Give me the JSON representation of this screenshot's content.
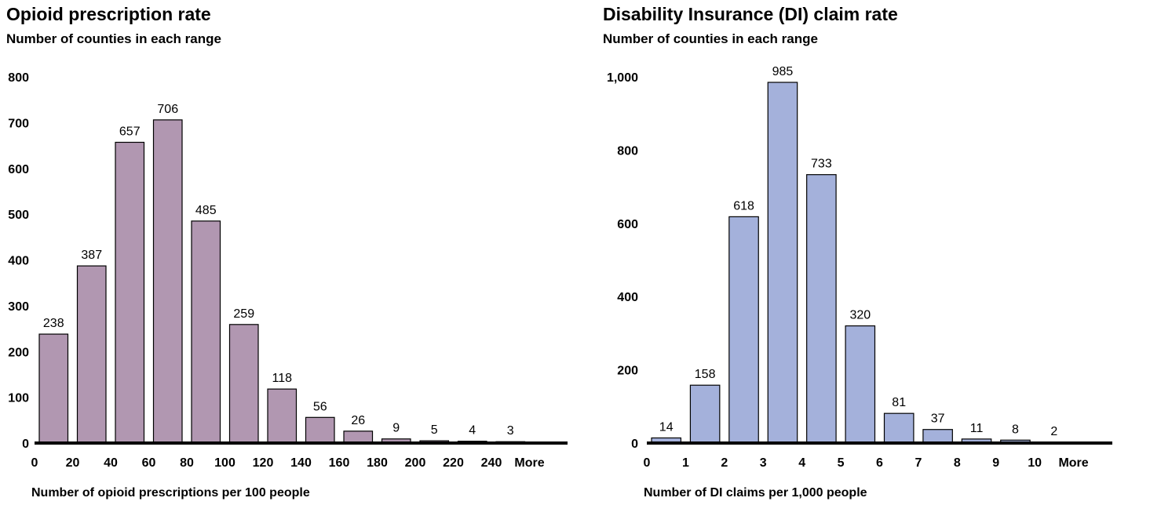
{
  "chart_data": [
    {
      "type": "bar",
      "title": "Opioid prescription rate",
      "subtitle": "Number of counties in each range",
      "xlabel": "Number of opioid prescriptions per 100 people",
      "ylabel": "",
      "ylim": [
        0,
        800
      ],
      "yticks": [
        "0",
        "100",
        "200",
        "300",
        "400",
        "500",
        "600",
        "700",
        "800"
      ],
      "xticks": [
        "0",
        "20",
        "40",
        "60",
        "80",
        "100",
        "120",
        "140",
        "160",
        "180",
        "200",
        "220",
        "240",
        "More"
      ],
      "values": [
        238,
        387,
        657,
        706,
        485,
        259,
        118,
        56,
        26,
        9,
        5,
        4,
        3
      ],
      "data_labels": [
        "238",
        "387",
        "657",
        "706",
        "485",
        "259",
        "118",
        "56",
        "26",
        "9",
        "5",
        "4",
        "3"
      ],
      "bar_color": "#b197b1",
      "grid": false,
      "legend": "none"
    },
    {
      "type": "bar",
      "title": "Disability Insurance (DI) claim rate",
      "subtitle": "Number of counties in each range",
      "xlabel": "Number of DI claims per 1,000 people",
      "ylabel": "",
      "ylim": [
        0,
        1000
      ],
      "yticks": [
        "0",
        "200",
        "400",
        "600",
        "800",
        "1,000"
      ],
      "xticks": [
        "0",
        "1",
        "2",
        "3",
        "4",
        "5",
        "6",
        "7",
        "8",
        "9",
        "10",
        "More"
      ],
      "values": [
        14,
        158,
        618,
        985,
        733,
        320,
        81,
        37,
        11,
        8,
        2
      ],
      "data_labels": [
        "14",
        "158",
        "618",
        "985",
        "733",
        "320",
        "81",
        "37",
        "11",
        "8",
        "2"
      ],
      "bar_color": "#a4b1db",
      "grid": false,
      "legend": "none"
    }
  ]
}
